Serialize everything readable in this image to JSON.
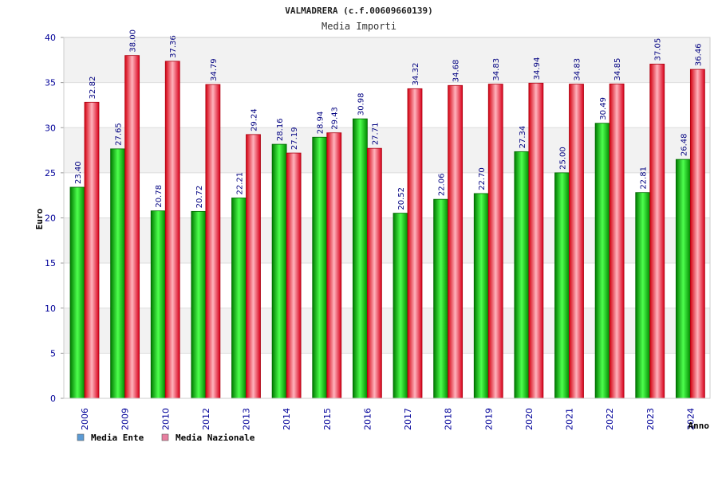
{
  "chart_data": {
    "type": "bar",
    "title": "VALMADRERA (c.f.00609660139)",
    "subtitle": "Media Importi",
    "xlabel": "Anno",
    "ylabel": "Euro",
    "ylim": [
      0,
      40
    ],
    "yticks": [
      "0",
      "5",
      "10",
      "15",
      "20",
      "25",
      "30",
      "35",
      "40"
    ],
    "categories": [
      "2006",
      "2009",
      "2010",
      "2012",
      "2013",
      "2014",
      "2015",
      "2016",
      "2017",
      "2018",
      "2019",
      "2020",
      "2021",
      "2022",
      "2023",
      "2024"
    ],
    "series": [
      {
        "name": "Media Ente",
        "values": [
          23.4,
          27.65,
          20.78,
          20.72,
          22.21,
          28.16,
          28.94,
          30.98,
          20.52,
          22.06,
          22.7,
          27.34,
          25.0,
          30.49,
          22.81,
          26.48
        ],
        "labels": [
          "23.40",
          "27.65",
          "20.78",
          "20.72",
          "22.21",
          "28.16",
          "28.94",
          "30.98",
          "20.52",
          "22.06",
          "22.70",
          "27.34",
          "25.00",
          "30.49",
          "22.81",
          "26.48"
        ]
      },
      {
        "name": "Media Nazionale",
        "values": [
          32.82,
          38.0,
          37.36,
          34.79,
          29.24,
          27.19,
          29.43,
          27.71,
          34.32,
          34.68,
          34.83,
          34.94,
          34.83,
          34.85,
          37.05,
          36.46
        ],
        "labels": [
          "32.82",
          "38.00",
          "37.36",
          "34.79",
          "29.24",
          "27.19",
          "29.43",
          "27.71",
          "34.32",
          "34.68",
          "34.83",
          "34.94",
          "34.83",
          "34.85",
          "37.05",
          "36.46"
        ]
      }
    ],
    "legend": [
      {
        "label": "Media Ente",
        "color": "#5b9bd5"
      },
      {
        "label": "Media Nazionale",
        "color": "#e87fa0"
      }
    ],
    "legend_position": "bottom-left",
    "grid": true,
    "colors": {
      "ente_dark": "#009900",
      "ente_light": "#66ff66",
      "naz_dark": "#dd0011",
      "naz_light": "#ffaab4",
      "band": "#f2f2f2",
      "tick_text": "#000099"
    }
  }
}
